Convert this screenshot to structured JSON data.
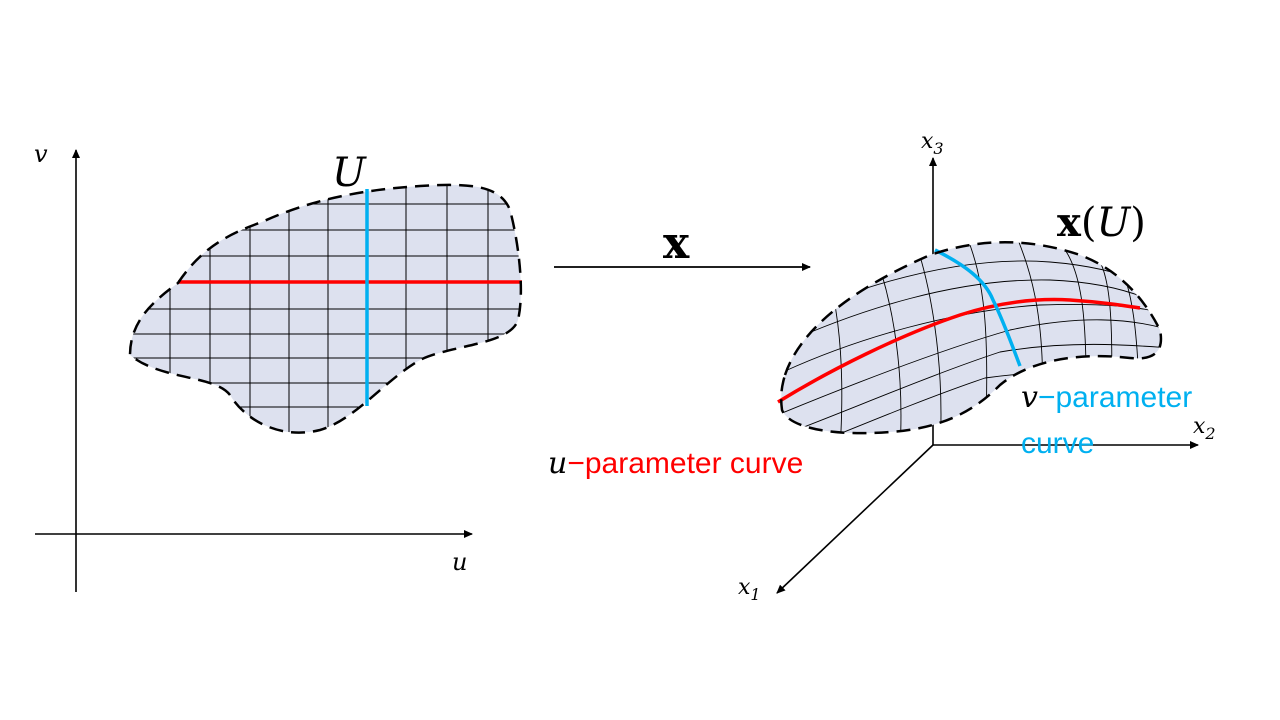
{
  "labels": {
    "v_axis": "v",
    "u_axis": "u",
    "domain": "U",
    "map": "x",
    "image_map": "x",
    "image_paren_open": "(",
    "image_U": "U",
    "image_paren_close": ")",
    "x1": "x",
    "x1_sub": "1",
    "x2": "x",
    "x2_sub": "2",
    "x3": "x",
    "x3_sub": "3",
    "u_curve_var": "u",
    "u_curve_text": "−parameter curve",
    "v_curve_var": "v",
    "v_curve_text_1": "−parameter",
    "v_curve_text_2": "curve"
  },
  "colors": {
    "u_curve": "#ff0000",
    "v_curve": "#00b0f0",
    "region_fill": "#dde1ef",
    "ink": "#000000"
  }
}
